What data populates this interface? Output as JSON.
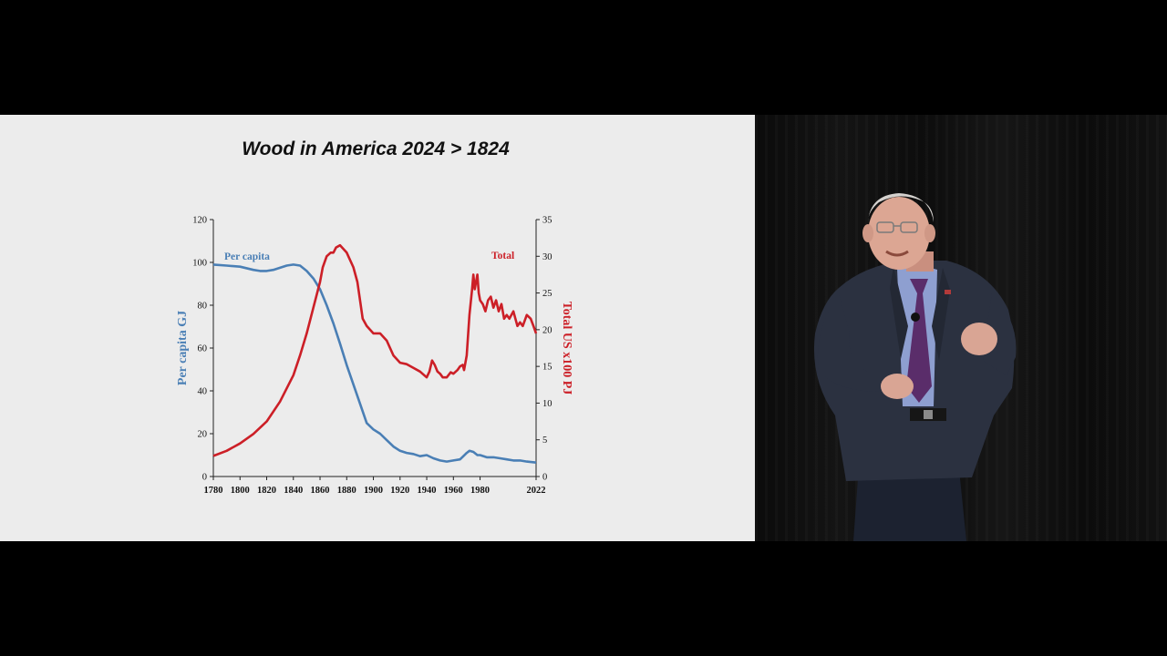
{
  "slide": {
    "title": "Wood in America 2024 > 1824"
  },
  "colors": {
    "per_capita": "#4a7fb5",
    "total": "#cc1f27",
    "axis": "#222222",
    "slide_bg": "#ececec"
  },
  "chart_data": {
    "type": "line",
    "title": "",
    "xlabel": "",
    "x_ticks": [
      1780,
      1800,
      1820,
      1840,
      1860,
      1880,
      1900,
      1920,
      1940,
      1960,
      1980,
      2022
    ],
    "xlim": [
      1780,
      2022
    ],
    "y_left": {
      "label": "Per capita GJ",
      "ticks": [
        0,
        20,
        40,
        60,
        80,
        100,
        120
      ],
      "lim": [
        0,
        120
      ]
    },
    "y_right": {
      "label": "Total US x100 PJ",
      "ticks": [
        0,
        5,
        10,
        15,
        20,
        25,
        30,
        35
      ],
      "lim": [
        0,
        35
      ]
    },
    "grid": false,
    "series": [
      {
        "name": "Per capita",
        "axis": "left",
        "x": [
          1780,
          1790,
          1800,
          1810,
          1815,
          1820,
          1825,
          1830,
          1835,
          1840,
          1845,
          1850,
          1855,
          1860,
          1865,
          1870,
          1875,
          1880,
          1885,
          1890,
          1895,
          1900,
          1905,
          1910,
          1915,
          1920,
          1925,
          1930,
          1935,
          1940,
          1945,
          1950,
          1955,
          1960,
          1965,
          1970,
          1972,
          1975,
          1978,
          1980,
          1985,
          1990,
          1995,
          2000,
          2005,
          2010,
          2015,
          2022
        ],
        "y": [
          99,
          98.5,
          98,
          96.5,
          96,
          96,
          96.5,
          97.5,
          98.5,
          99,
          98.5,
          96,
          92.5,
          87.5,
          80,
          71.5,
          62,
          52,
          43,
          34,
          25,
          22,
          20,
          17,
          14,
          12,
          11,
          10.5,
          9.5,
          10,
          8.5,
          7.5,
          7,
          7.5,
          8,
          11,
          12,
          11.5,
          10,
          10,
          9,
          9,
          8.5,
          8,
          7.5,
          7.5,
          7,
          6.5
        ]
      },
      {
        "name": "Total",
        "axis": "right",
        "x": [
          1780,
          1790,
          1800,
          1810,
          1820,
          1830,
          1840,
          1845,
          1850,
          1855,
          1860,
          1862,
          1865,
          1868,
          1870,
          1872,
          1875,
          1880,
          1885,
          1888,
          1890,
          1892,
          1895,
          1900,
          1905,
          1910,
          1915,
          1920,
          1925,
          1930,
          1935,
          1940,
          1942,
          1944,
          1946,
          1948,
          1950,
          1952,
          1955,
          1958,
          1960,
          1963,
          1965,
          1967,
          1968,
          1970,
          1972,
          1974,
          1975,
          1976,
          1978,
          1979,
          1980,
          1982,
          1984,
          1986,
          1988,
          1990,
          1992,
          1994,
          1996,
          1998,
          2000,
          2002,
          2005,
          2008,
          2010,
          2012,
          2015,
          2018,
          2020,
          2022
        ],
        "y": [
          2.8,
          3.5,
          4.5,
          5.8,
          7.5,
          10.2,
          13.8,
          16.5,
          19.5,
          23,
          26.5,
          28.5,
          30,
          30.5,
          30.5,
          31.2,
          31.5,
          30.5,
          28.5,
          26.5,
          24,
          21.5,
          20.5,
          19.5,
          19.5,
          18.5,
          16.5,
          15.5,
          15.3,
          14.8,
          14.3,
          13.5,
          14.3,
          15.8,
          15.2,
          14.3,
          14,
          13.5,
          13.5,
          14.2,
          14,
          14.5,
          15,
          15.2,
          14.5,
          16.5,
          22,
          25.5,
          27.5,
          25.5,
          27.5,
          25,
          24,
          23.5,
          22.5,
          24,
          24.5,
          23,
          24,
          22.5,
          23.5,
          21.5,
          22,
          21.5,
          22.5,
          20.5,
          21,
          20.5,
          22,
          21.5,
          20.5,
          19.5
        ]
      }
    ],
    "annotations": [
      {
        "text": "Per capita",
        "series": "Per capita"
      },
      {
        "text": "Total",
        "series": "Total"
      }
    ]
  }
}
